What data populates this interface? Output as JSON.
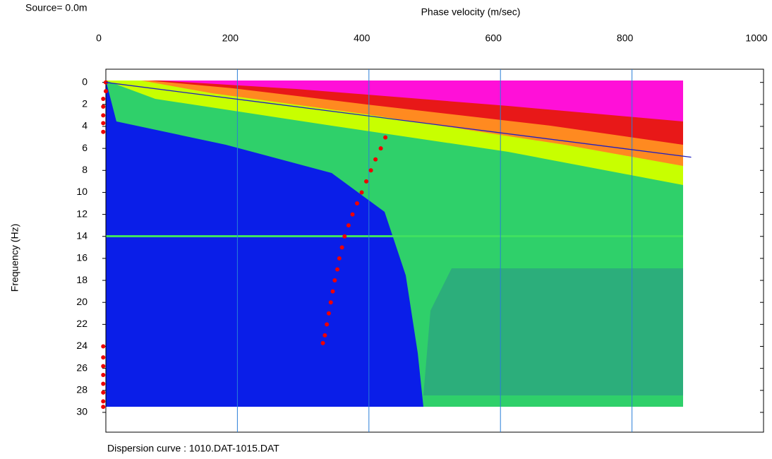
{
  "chart_data": {
    "type": "scatter",
    "source_label": "Source=  0.0m",
    "x_label": "Phase velocity (m/sec)",
    "y_label": "Frequency (Hz)",
    "caption": "Dispersion curve : 1010.DAT-1015.DAT",
    "xlim": [
      0,
      1000
    ],
    "xticks": [
      0,
      200,
      400,
      600,
      800,
      1000
    ],
    "ylim": [
      -1.2,
      31.8
    ],
    "yticks": [
      0,
      2,
      4,
      6,
      8,
      10,
      12,
      14,
      16,
      18,
      20,
      22,
      24,
      26,
      28,
      30
    ],
    "y_inverted": true,
    "x_axis_position": "top",
    "grid": true,
    "grid_color": "#2a7fd8",
    "series": [
      {
        "mode": "markers",
        "color": "#ee0000",
        "x": [
          425,
          418,
          410,
          403,
          396,
          389,
          382,
          375,
          369,
          363,
          359,
          355,
          352,
          348,
          345,
          342,
          339,
          336,
          333,
          330
        ],
        "y": [
          5,
          6,
          7,
          8,
          9,
          10,
          11,
          12,
          13,
          14,
          15,
          16,
          17,
          18,
          19,
          20,
          21,
          22,
          23,
          23.7
        ]
      },
      {
        "mode": "markers",
        "color": "#ee0000",
        "x": [
          0,
          0,
          -4,
          -4,
          -4,
          -4,
          -4,
          -4,
          -4,
          -4,
          -4,
          -4,
          -4,
          -4,
          -4
        ],
        "y": [
          0,
          0.8,
          1.5,
          2.2,
          3,
          3.7,
          4.5,
          24,
          25,
          25.8,
          26.6,
          27.4,
          28.2,
          29,
          29.5
        ]
      },
      {
        "mode": "line",
        "color": "#2020c0",
        "x": [
          0,
          890
        ],
        "y": [
          0,
          6.8
        ]
      }
    ]
  }
}
